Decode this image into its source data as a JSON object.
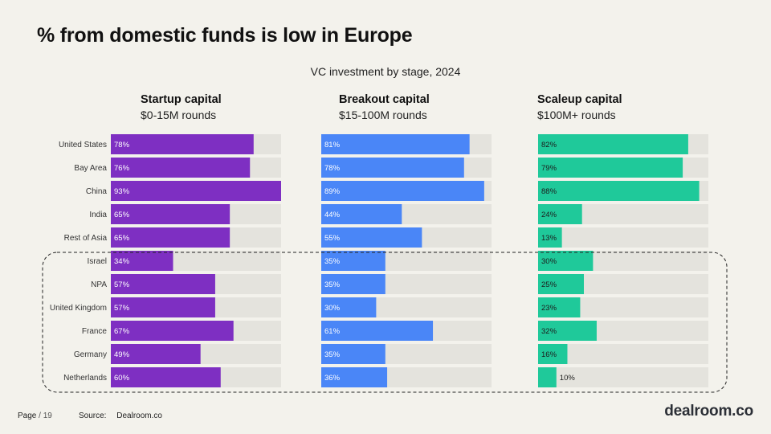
{
  "page": {
    "title": "% from domestic funds is low in Europe",
    "footer": {
      "page_label": "Page",
      "page_number": "/ 19",
      "source_label": "Source:",
      "source_value": "Dealroom.co"
    },
    "logo": "dealroom.co"
  },
  "chart_data": {
    "type": "bar",
    "orientation": "horizontal",
    "title": "VC investment by stage, 2024",
    "categories": [
      "United States",
      "Bay Area",
      "China",
      "India",
      "Rest of Asia",
      "Israel",
      "NPA",
      "United Kingdom",
      "France",
      "Germany",
      "Netherlands"
    ],
    "xlim": [
      0,
      93
    ],
    "highlighted_group": [
      "NPA",
      "United Kingdom",
      "France",
      "Germany",
      "Netherlands"
    ],
    "panels": [
      {
        "title": "Startup capital",
        "subtitle": "$0-15M rounds",
        "color": "#7e2fc2",
        "values": [
          78,
          76,
          93,
          65,
          65,
          34,
          57,
          57,
          67,
          49,
          60
        ],
        "labels": [
          "78%",
          "76%",
          "93%",
          "65%",
          "65%",
          "34%",
          "57%",
          "57%",
          "67%",
          "49%",
          "60%"
        ]
      },
      {
        "title": "Breakout capital",
        "subtitle": "$15-100M rounds",
        "color": "#4a86f7",
        "values": [
          81,
          78,
          89,
          44,
          55,
          35,
          35,
          30,
          61,
          35,
          36
        ],
        "labels": [
          "81%",
          "78%",
          "89%",
          "44%",
          "55%",
          "35%",
          "35%",
          "30%",
          "61%",
          "35%",
          "36%"
        ]
      },
      {
        "title": "Scaleup capital",
        "subtitle": "$100M+ rounds",
        "color": "#1fc99a",
        "values": [
          82,
          79,
          88,
          24,
          13,
          30,
          25,
          23,
          32,
          16,
          10
        ],
        "labels": [
          "82%",
          "79%",
          "88%",
          "24%",
          "13%",
          "30%",
          "25%",
          "23%",
          "32%",
          "16%",
          "10%"
        ]
      }
    ],
    "colors": {
      "track": "#e4e3dd",
      "label_on_bar": "#ffffff",
      "label_on_green": "#1c1c1c"
    }
  }
}
